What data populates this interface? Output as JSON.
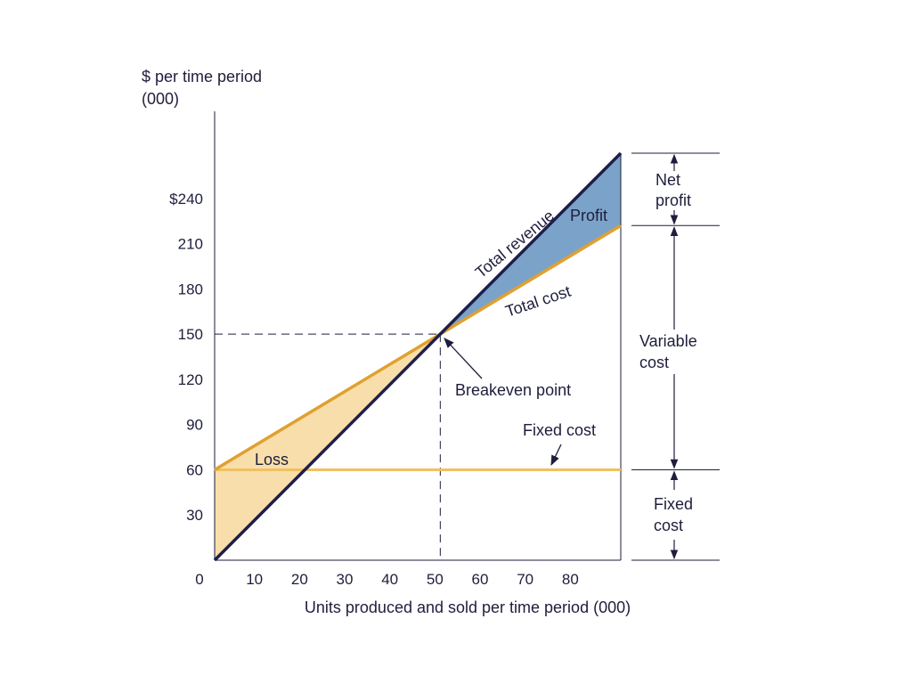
{
  "chart_data": {
    "type": "line",
    "title": "",
    "ylabel_line1": "$ per time period",
    "ylabel_line2": "(000)",
    "xlabel": "Units produced and sold per time period (000)",
    "x_range": [
      0,
      90
    ],
    "y_range": [
      0,
      270
    ],
    "x_ticks": [
      10,
      20,
      30,
      40,
      50,
      60,
      70,
      80
    ],
    "x_tick_labels": [
      "10",
      "20",
      "30",
      "40",
      "50",
      "60",
      "70",
      "80"
    ],
    "origin_label": "0",
    "y_ticks": [
      30,
      60,
      90,
      120,
      150,
      180,
      210,
      240
    ],
    "y_tick_labels": [
      "30",
      "60",
      "90",
      "120",
      "150",
      "180",
      "210",
      "240"
    ],
    "y_top_tick_label": "$240",
    "series": [
      {
        "name": "Total revenue",
        "x": [
          0,
          90
        ],
        "y": [
          0,
          270
        ],
        "color": "#1e1e4a"
      },
      {
        "name": "Total cost",
        "x": [
          0,
          90
        ],
        "y": [
          60,
          222
        ],
        "color": "#e0a030"
      },
      {
        "name": "Fixed cost",
        "x": [
          0,
          90
        ],
        "y": [
          60,
          60
        ],
        "color": "#f0c060"
      }
    ],
    "breakeven": {
      "x": 50,
      "y": 150
    },
    "regions": {
      "loss": {
        "label": "Loss",
        "color": "#f8deaa"
      },
      "profit": {
        "label": "Profit",
        "color": "#7ba3c9"
      }
    },
    "annotations": {
      "total_revenue": "Total revenue",
      "total_cost": "Total cost",
      "fixed_cost": "Fixed cost",
      "breakeven": "Breakeven point"
    },
    "side_brackets": {
      "net_profit": [
        "Net",
        "profit"
      ],
      "variable_cost": [
        "Variable",
        "cost"
      ],
      "fixed_cost": [
        "Fixed",
        "cost"
      ]
    }
  }
}
